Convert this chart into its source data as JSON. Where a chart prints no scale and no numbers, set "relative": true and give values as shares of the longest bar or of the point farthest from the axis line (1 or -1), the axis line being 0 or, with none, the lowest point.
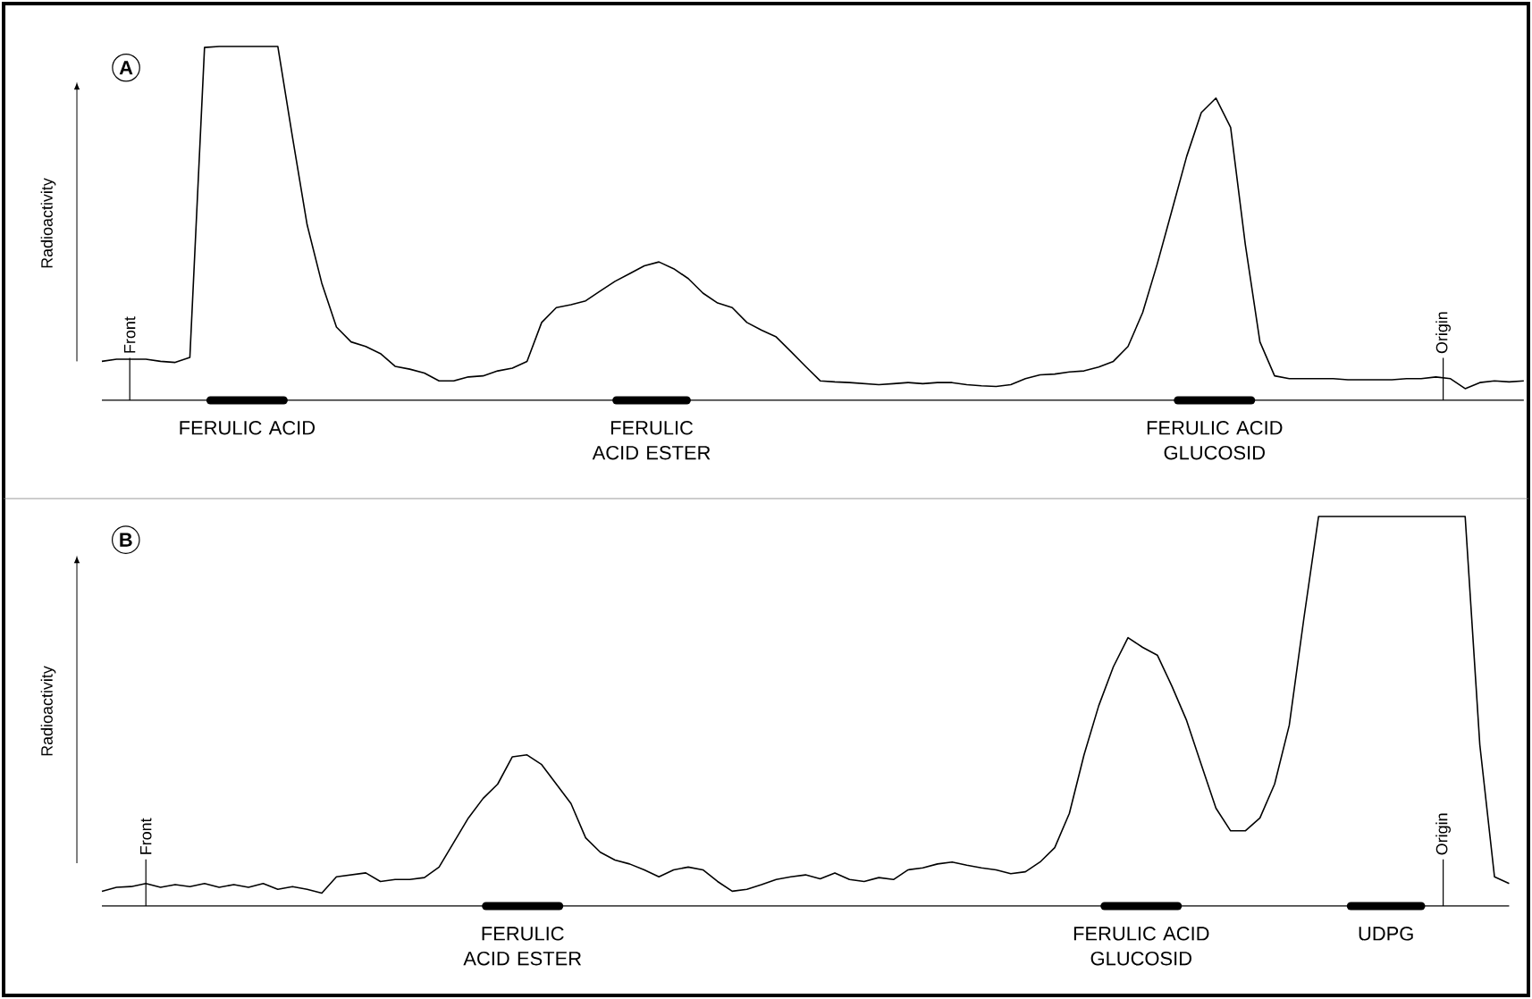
{
  "chart_data": [
    {
      "type": "line",
      "title": "A",
      "ylabel": "Radioactivity",
      "relative": true,
      "categories": [
        null,
        null,
        null,
        null,
        null,
        null,
        null,
        null,
        null,
        null,
        null,
        null,
        null,
        null,
        null,
        null,
        null,
        null,
        null,
        null,
        null,
        null,
        null,
        null,
        null,
        null,
        null,
        null,
        null,
        null,
        null,
        null,
        null,
        null,
        null,
        null,
        null,
        null,
        null,
        null,
        null,
        null,
        null,
        null,
        null,
        null,
        null,
        null,
        null,
        null,
        null,
        null,
        null,
        null,
        null,
        null,
        null,
        null,
        null,
        null,
        null,
        null,
        null,
        null,
        null,
        null,
        null,
        null,
        null,
        null,
        null,
        null,
        null,
        null,
        null,
        null,
        null,
        null,
        null,
        null,
        null,
        null,
        null,
        null,
        null,
        null,
        null,
        null,
        null,
        null,
        null,
        null,
        null,
        null,
        null,
        null,
        null,
        null
      ],
      "series": [
        {
          "color": "#000000",
          "values": [
            0.11,
            0.116,
            0.116,
            0.116,
            0.11,
            0.107,
            0.121,
            0.997,
            1,
            1,
            1,
            1,
            1,
            0.744,
            0.496,
            0.331,
            0.207,
            0.165,
            0.152,
            0.132,
            0.096,
            0.088,
            0.077,
            0.055,
            0.055,
            0.066,
            0.069,
            0.083,
            0.091,
            0.11,
            0.22,
            0.262,
            0.27,
            0.281,
            0.309,
            0.336,
            0.358,
            0.38,
            0.391,
            0.372,
            0.344,
            0.303,
            0.275,
            0.262,
            0.22,
            0.198,
            0.179,
            0.138,
            0.096,
            0.055,
            0.052,
            0.05,
            0.047,
            0.044,
            0.047,
            0.05,
            0.047,
            0.05,
            0.05,
            0.044,
            0.041,
            0.039,
            0.044,
            0.061,
            0.072,
            0.074,
            0.08,
            0.083,
            0.094,
            0.11,
            0.152,
            0.248,
            0.386,
            0.537,
            0.689,
            0.813,
            0.854,
            0.771,
            0.441,
            0.165,
            0.069,
            0.061,
            0.061,
            0.061,
            0.061,
            0.058,
            0.058,
            0.058,
            0.058,
            0.061,
            0.061,
            0.066,
            0.061,
            0.033,
            0.05,
            0.055,
            0.052,
            0.055
          ]
        }
      ],
      "annotations": [
        "Front",
        "Origin",
        "FERULIC ACID",
        "FERULIC ACID ESTER",
        "FERULIC ACID GLUCOSID"
      ]
    },
    {
      "type": "line",
      "title": "B",
      "ylabel": "Radioactivity",
      "relative": true,
      "categories": [
        null,
        null,
        null,
        null,
        null,
        null,
        null,
        null,
        null,
        null,
        null,
        null,
        null,
        null,
        null,
        null,
        null,
        null,
        null,
        null,
        null,
        null,
        null,
        null,
        null,
        null,
        null,
        null,
        null,
        null,
        null,
        null,
        null,
        null,
        null,
        null,
        null,
        null,
        null,
        null,
        null,
        null,
        null,
        null,
        null,
        null,
        null,
        null,
        null,
        null,
        null,
        null,
        null,
        null,
        null,
        null,
        null,
        null,
        null,
        null,
        null,
        null,
        null,
        null,
        null,
        null,
        null,
        null,
        null,
        null,
        null,
        null,
        null,
        null,
        null,
        null,
        null,
        null,
        null,
        null,
        null,
        null,
        null,
        null,
        null,
        null,
        null,
        null,
        null,
        null,
        null,
        null,
        null,
        null,
        null,
        null,
        null
      ],
      "series": [
        {
          "color": "#000000",
          "values": [
            0.038,
            0.048,
            0.05,
            0.058,
            0.048,
            0.055,
            0.05,
            0.058,
            0.048,
            0.055,
            0.048,
            0.058,
            0.043,
            0.05,
            0.043,
            0.033,
            0.075,
            0.08,
            0.085,
            0.063,
            0.068,
            0.068,
            0.073,
            0.1,
            0.163,
            0.226,
            0.276,
            0.313,
            0.383,
            0.388,
            0.363,
            0.313,
            0.263,
            0.175,
            0.138,
            0.118,
            0.108,
            0.093,
            0.075,
            0.093,
            0.1,
            0.093,
            0.063,
            0.038,
            0.043,
            0.055,
            0.068,
            0.075,
            0.08,
            0.07,
            0.085,
            0.068,
            0.063,
            0.073,
            0.068,
            0.093,
            0.098,
            0.108,
            0.113,
            0.105,
            0.098,
            0.093,
            0.083,
            0.088,
            0.113,
            0.15,
            0.238,
            0.388,
            0.514,
            0.614,
            0.689,
            0.664,
            0.644,
            0.564,
            0.476,
            0.363,
            0.251,
            0.193,
            0.193,
            0.226,
            0.313,
            0.464,
            0.739,
            1,
            1,
            1,
            1,
            1,
            1,
            1,
            1,
            1,
            1,
            1,
            0.414,
            0.075,
            0.058
          ]
        }
      ],
      "annotations": [
        "Front",
        "Origin",
        "FERULIC ACID ESTER",
        "FERULIC ACID GLUCOSID",
        "UDPG"
      ]
    }
  ]
}
